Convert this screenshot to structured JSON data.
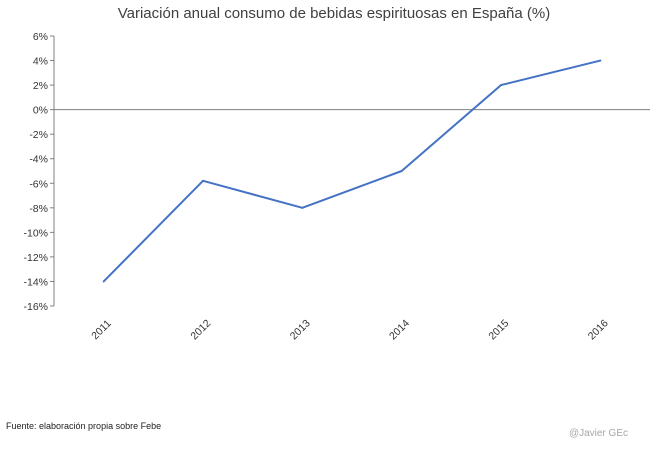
{
  "chart_data": {
    "type": "line",
    "title": "Variación anual consumo de bebidas espirituosas en España (%)",
    "xlabel": "",
    "ylabel": "",
    "categories": [
      "2011",
      "2012",
      "2013",
      "2014",
      "2015",
      "2016"
    ],
    "series": [
      {
        "name": "Variación anual",
        "values": [
          -14,
          -5.8,
          -8,
          -5,
          2,
          4
        ]
      }
    ],
    "ylim": [
      -16,
      6
    ],
    "yticks": [
      6,
      4,
      2,
      0,
      -2,
      -4,
      -6,
      -8,
      -10,
      -12,
      -14,
      -16
    ],
    "ytick_labels": [
      "6%",
      "4%",
      "2%",
      "0%",
      "-2%",
      "-4%",
      "-6%",
      "-8%",
      "-10%",
      "-12%",
      "-14%",
      "-16%"
    ],
    "grid": false,
    "line_color": "#4472c4",
    "axis_color": "#808080"
  },
  "footer": {
    "source": "Fuente: elaboración propia sobre Febe",
    "credit": "@Javier GEc"
  }
}
